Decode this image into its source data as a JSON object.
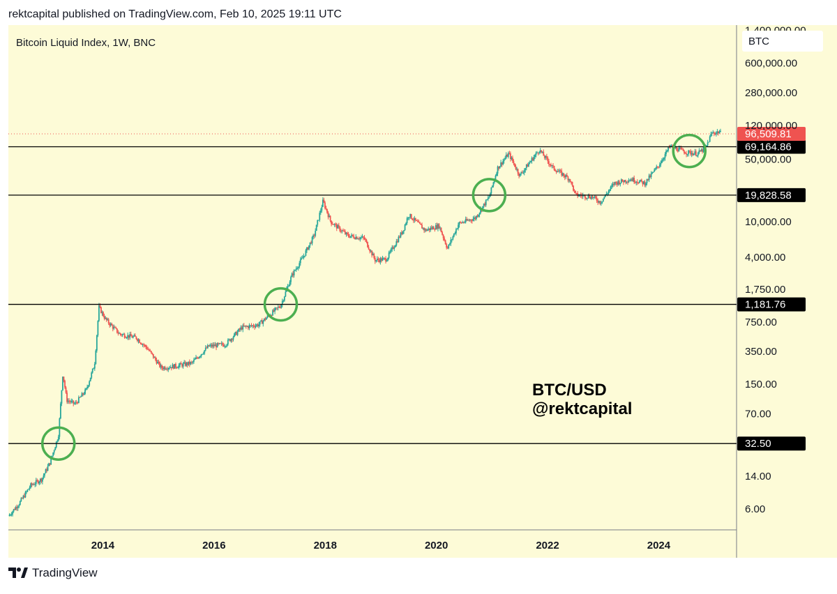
{
  "header": {
    "published_line": "rektcapital published on TradingView.com, Feb 10, 2025 19:11 UTC"
  },
  "footer": {
    "brand_label": "TradingView"
  },
  "colors": {
    "plot_background": "#fdfbd7",
    "candle_up": "#26a69a",
    "candle_down": "#ef5350",
    "support_line": "#000000",
    "circle": "#4caf50",
    "price_badge": "#ef5350",
    "level_badge": "#000000"
  },
  "chart_data": {
    "type": "candlestick",
    "title": "Bitcoin Liquid Index, 1W, BNC",
    "symbol_badge": "BTC",
    "watermark": [
      "BTC/USD",
      "@rektcapital"
    ],
    "y_scale": "log",
    "ylim": [
      3.5,
      1600000
    ],
    "xlim": [
      2012.3,
      2025.4
    ],
    "x_ticks": [
      {
        "value": 2014,
        "label": "2014"
      },
      {
        "value": 2016,
        "label": "2016"
      },
      {
        "value": 2018,
        "label": "2018"
      },
      {
        "value": 2020,
        "label": "2020"
      },
      {
        "value": 2022,
        "label": "2022"
      },
      {
        "value": 2024,
        "label": "2024"
      }
    ],
    "y_ticks": [
      {
        "value": 1400000,
        "label": "1,400,000.00"
      },
      {
        "value": 600000,
        "label": "600,000.00"
      },
      {
        "value": 280000,
        "label": "280,000.00"
      },
      {
        "value": 120000,
        "label": "120,000.00"
      },
      {
        "value": 50000,
        "label": "50,000.00"
      },
      {
        "value": 10000,
        "label": "10,000.00"
      },
      {
        "value": 4000,
        "label": "4,000.00"
      },
      {
        "value": 1750,
        "label": "1,750.00"
      },
      {
        "value": 750,
        "label": "750.00"
      },
      {
        "value": 350,
        "label": "350.00"
      },
      {
        "value": 150,
        "label": "150.00"
      },
      {
        "value": 70,
        "label": "70.00"
      },
      {
        "value": 14,
        "label": "14.00"
      },
      {
        "value": 6,
        "label": "6.00"
      }
    ],
    "current_price": {
      "value": 96509.81,
      "label": "96,509.81"
    },
    "horizontal_levels": [
      {
        "value": 69164.86,
        "label": "69,164.86"
      },
      {
        "value": 19828.58,
        "label": "19,828.58"
      },
      {
        "value": 1181.76,
        "label": "1,181.76"
      },
      {
        "value": 32.5,
        "label": "32.50"
      }
    ],
    "breakout_circles": [
      {
        "x": 2013.2,
        "y": 32.5
      },
      {
        "x": 2017.2,
        "y": 1181.76
      },
      {
        "x": 2020.95,
        "y": 19828.58
      },
      {
        "x": 2024.55,
        "y": 62000
      }
    ],
    "price_path": [
      {
        "x": 2012.3,
        "y": 5
      },
      {
        "x": 2012.5,
        "y": 7
      },
      {
        "x": 2012.7,
        "y": 11
      },
      {
        "x": 2012.9,
        "y": 13
      },
      {
        "x": 2013.05,
        "y": 20
      },
      {
        "x": 2013.2,
        "y": 40
      },
      {
        "x": 2013.28,
        "y": 200
      },
      {
        "x": 2013.35,
        "y": 100
      },
      {
        "x": 2013.5,
        "y": 90
      },
      {
        "x": 2013.7,
        "y": 130
      },
      {
        "x": 2013.85,
        "y": 250
      },
      {
        "x": 2013.93,
        "y": 1100
      },
      {
        "x": 2014.05,
        "y": 800
      },
      {
        "x": 2014.3,
        "y": 550
      },
      {
        "x": 2014.6,
        "y": 500
      },
      {
        "x": 2014.8,
        "y": 380
      },
      {
        "x": 2015.05,
        "y": 230
      },
      {
        "x": 2015.3,
        "y": 240
      },
      {
        "x": 2015.6,
        "y": 260
      },
      {
        "x": 2015.9,
        "y": 400
      },
      {
        "x": 2016.2,
        "y": 420
      },
      {
        "x": 2016.5,
        "y": 650
      },
      {
        "x": 2016.8,
        "y": 700
      },
      {
        "x": 2017.0,
        "y": 900
      },
      {
        "x": 2017.2,
        "y": 1150
      },
      {
        "x": 2017.4,
        "y": 2500
      },
      {
        "x": 2017.6,
        "y": 4000
      },
      {
        "x": 2017.8,
        "y": 7000
      },
      {
        "x": 2017.96,
        "y": 17000
      },
      {
        "x": 2018.1,
        "y": 10000
      },
      {
        "x": 2018.4,
        "y": 7000
      },
      {
        "x": 2018.7,
        "y": 6500
      },
      {
        "x": 2018.9,
        "y": 3700
      },
      {
        "x": 2019.1,
        "y": 3800
      },
      {
        "x": 2019.4,
        "y": 8000
      },
      {
        "x": 2019.5,
        "y": 12000
      },
      {
        "x": 2019.8,
        "y": 8000
      },
      {
        "x": 2020.05,
        "y": 9000
      },
      {
        "x": 2020.2,
        "y": 5000
      },
      {
        "x": 2020.4,
        "y": 9500
      },
      {
        "x": 2020.7,
        "y": 11000
      },
      {
        "x": 2020.95,
        "y": 19000
      },
      {
        "x": 2021.1,
        "y": 40000
      },
      {
        "x": 2021.3,
        "y": 58000
      },
      {
        "x": 2021.5,
        "y": 33000
      },
      {
        "x": 2021.85,
        "y": 64000
      },
      {
        "x": 2022.1,
        "y": 40000
      },
      {
        "x": 2022.4,
        "y": 30000
      },
      {
        "x": 2022.5,
        "y": 20000
      },
      {
        "x": 2022.8,
        "y": 19000
      },
      {
        "x": 2022.95,
        "y": 16500
      },
      {
        "x": 2023.2,
        "y": 27000
      },
      {
        "x": 2023.5,
        "y": 30000
      },
      {
        "x": 2023.75,
        "y": 27000
      },
      {
        "x": 2024.0,
        "y": 43000
      },
      {
        "x": 2024.2,
        "y": 70000
      },
      {
        "x": 2024.5,
        "y": 60000
      },
      {
        "x": 2024.7,
        "y": 58000
      },
      {
        "x": 2024.85,
        "y": 68000
      },
      {
        "x": 2024.95,
        "y": 98000
      },
      {
        "x": 2025.1,
        "y": 102000
      },
      {
        "x": 2025.12,
        "y": 96509.81
      }
    ]
  }
}
